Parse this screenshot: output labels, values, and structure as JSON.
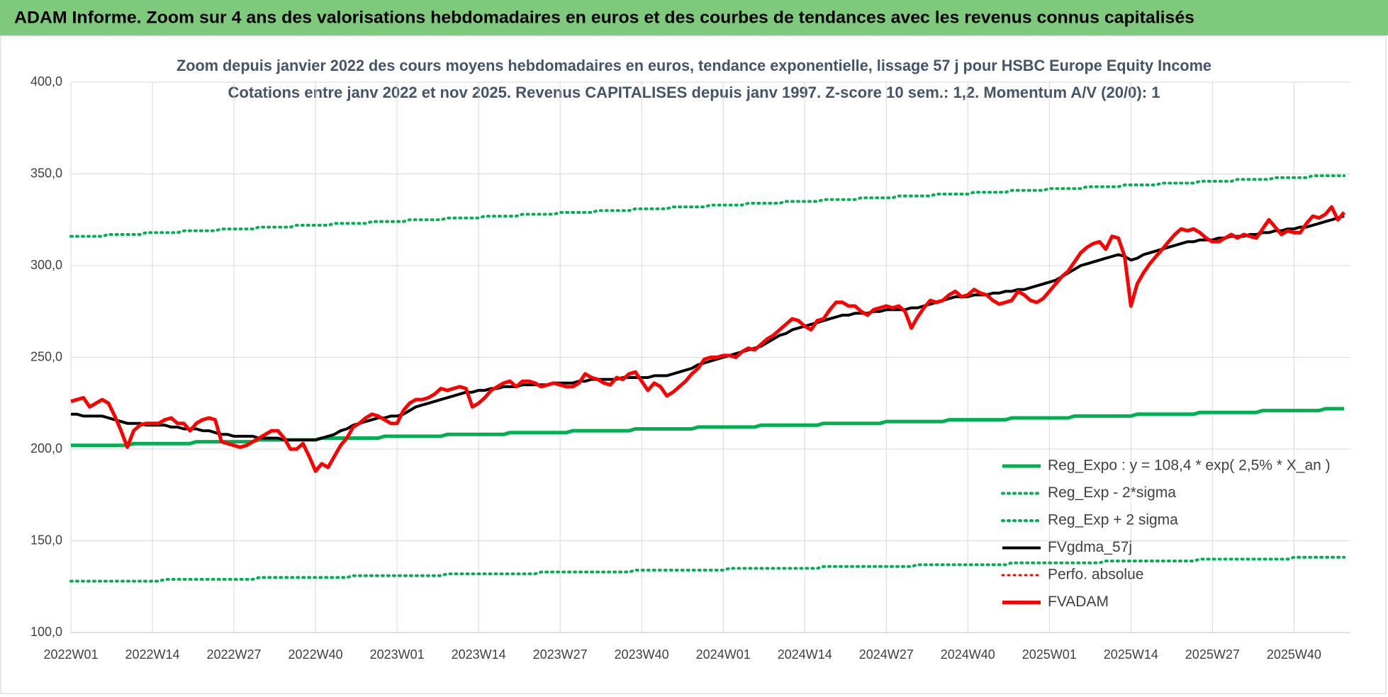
{
  "header": {
    "title": "ADAM Informe. Zoom sur 4 ans des valorisations hebdomadaires en euros et des courbes de tendances avec les revenus connus capitalisés"
  },
  "chart_data": {
    "type": "line",
    "title": "Zoom depuis janvier 2022 des cours moyens hebdomadaires en euros, tendance exponentielle, lissage 57 j pour HSBC Europe Equity Income",
    "subtitle": "Cotations entre janv 2022 et nov 2025. Revenus CAPITALISES depuis janv 1997. Z-score 10 sem.: 1,2. Momentum A/V (20/0): 1",
    "categories": [
      "2022W01",
      null,
      null,
      null,
      null,
      null,
      null,
      null,
      null,
      null,
      null,
      null,
      null,
      "2022W14",
      null,
      null,
      null,
      null,
      null,
      null,
      null,
      null,
      null,
      null,
      null,
      null,
      "2022W27",
      null,
      null,
      null,
      null,
      null,
      null,
      null,
      null,
      null,
      null,
      null,
      null,
      "2022W40",
      null,
      null,
      null,
      null,
      null,
      null,
      null,
      null,
      null,
      null,
      null,
      null,
      "2023W01",
      null,
      null,
      null,
      null,
      null,
      null,
      null,
      null,
      null,
      null,
      null,
      null,
      "2023W14",
      null,
      null,
      null,
      null,
      null,
      null,
      null,
      null,
      null,
      null,
      null,
      null,
      "2023W27",
      null,
      null,
      null,
      null,
      null,
      null,
      null,
      null,
      null,
      null,
      null,
      null,
      "2023W40",
      null,
      null,
      null,
      null,
      null,
      null,
      null,
      null,
      null,
      null,
      null,
      null,
      "2024W01",
      null,
      null,
      null,
      null,
      null,
      null,
      null,
      null,
      null,
      null,
      null,
      null,
      "2024W14",
      null,
      null,
      null,
      null,
      null,
      null,
      null,
      null,
      null,
      null,
      null,
      null,
      "2024W27",
      null,
      null,
      null,
      null,
      null,
      null,
      null,
      null,
      null,
      null,
      null,
      null,
      "2024W40",
      null,
      null,
      null,
      null,
      null,
      null,
      null,
      null,
      null,
      null,
      null,
      null,
      "2025W01",
      null,
      null,
      null,
      null,
      null,
      null,
      null,
      null,
      null,
      null,
      null,
      null,
      "2025W14",
      null,
      null,
      null,
      null,
      null,
      null,
      null,
      null,
      null,
      null,
      null,
      null,
      "2025W27",
      null,
      null,
      null,
      null,
      null,
      null,
      null,
      null,
      null,
      null,
      null,
      null,
      "2025W40",
      null,
      null,
      null,
      null,
      null,
      null,
      null,
      null
    ],
    "series": [
      {
        "name": "Reg_Expo : y = 108,4 * exp( 2,5% *  X_an )",
        "color": "#00b050",
        "style": "solid",
        "width": 5,
        "values": [
          202,
          202,
          202,
          202,
          202,
          202,
          202,
          202,
          202,
          202,
          203,
          203,
          203,
          203,
          203,
          203,
          203,
          203,
          203,
          203,
          204,
          204,
          204,
          204,
          204,
          204,
          204,
          204,
          204,
          204,
          205,
          205,
          205,
          205,
          205,
          205,
          205,
          205,
          205,
          205,
          206,
          206,
          206,
          206,
          206,
          206,
          206,
          206,
          206,
          206,
          207,
          207,
          207,
          207,
          207,
          207,
          207,
          207,
          207,
          207,
          208,
          208,
          208,
          208,
          208,
          208,
          208,
          208,
          208,
          208,
          209,
          209,
          209,
          209,
          209,
          209,
          209,
          209,
          209,
          209,
          210,
          210,
          210,
          210,
          210,
          210,
          210,
          210,
          210,
          210,
          211,
          211,
          211,
          211,
          211,
          211,
          211,
          211,
          211,
          211,
          212,
          212,
          212,
          212,
          212,
          212,
          212,
          212,
          212,
          212,
          213,
          213,
          213,
          213,
          213,
          213,
          213,
          213,
          213,
          213,
          214,
          214,
          214,
          214,
          214,
          214,
          214,
          214,
          214,
          214,
          215,
          215,
          215,
          215,
          215,
          215,
          215,
          215,
          215,
          215,
          216,
          216,
          216,
          216,
          216,
          216,
          216,
          216,
          216,
          216,
          217,
          217,
          217,
          217,
          217,
          217,
          217,
          217,
          217,
          217,
          218,
          218,
          218,
          218,
          218,
          218,
          218,
          218,
          218,
          218,
          219,
          219,
          219,
          219,
          219,
          219,
          219,
          219,
          219,
          219,
          220,
          220,
          220,
          220,
          220,
          220,
          220,
          220,
          220,
          220,
          221,
          221,
          221,
          221,
          221,
          221,
          221,
          221,
          221,
          221,
          222,
          222,
          222,
          222
        ]
      },
      {
        "name": "Reg_Exp - 2*sigma",
        "color": "#00b050",
        "style": "dotted",
        "width": 4,
        "values": [
          128,
          128,
          128,
          128,
          128,
          128,
          128,
          128,
          128,
          128,
          128,
          128,
          128,
          128,
          128,
          129,
          129,
          129,
          129,
          129,
          129,
          129,
          129,
          129,
          129,
          129,
          129,
          129,
          129,
          129,
          130,
          130,
          130,
          130,
          130,
          130,
          130,
          130,
          130,
          130,
          130,
          130,
          130,
          130,
          130,
          131,
          131,
          131,
          131,
          131,
          131,
          131,
          131,
          131,
          131,
          131,
          131,
          131,
          131,
          131,
          132,
          132,
          132,
          132,
          132,
          132,
          132,
          132,
          132,
          132,
          132,
          132,
          132,
          132,
          132,
          133,
          133,
          133,
          133,
          133,
          133,
          133,
          133,
          133,
          133,
          133,
          133,
          133,
          133,
          133,
          134,
          134,
          134,
          134,
          134,
          134,
          134,
          134,
          134,
          134,
          134,
          134,
          134,
          134,
          134,
          135,
          135,
          135,
          135,
          135,
          135,
          135,
          135,
          135,
          135,
          135,
          135,
          135,
          135,
          135,
          136,
          136,
          136,
          136,
          136,
          136,
          136,
          136,
          136,
          136,
          136,
          136,
          136,
          136,
          136,
          137,
          137,
          137,
          137,
          137,
          137,
          137,
          137,
          137,
          137,
          137,
          137,
          137,
          137,
          137,
          138,
          138,
          138,
          138,
          138,
          138,
          138,
          138,
          138,
          138,
          138,
          138,
          138,
          138,
          138,
          139,
          139,
          139,
          139,
          139,
          139,
          139,
          139,
          139,
          139,
          139,
          139,
          139,
          139,
          139,
          140,
          140,
          140,
          140,
          140,
          140,
          140,
          140,
          140,
          140,
          140,
          140,
          140,
          140,
          140,
          141,
          141,
          141,
          141,
          141,
          141,
          141,
          141,
          141
        ]
      },
      {
        "name": "Reg_Exp + 2 sigma",
        "color": "#00b050",
        "style": "dotted",
        "width": 4,
        "values": [
          316,
          316,
          316,
          316,
          316,
          316,
          317,
          317,
          317,
          317,
          317,
          317,
          318,
          318,
          318,
          318,
          318,
          318,
          319,
          319,
          319,
          319,
          319,
          319,
          320,
          320,
          320,
          320,
          320,
          320,
          321,
          321,
          321,
          321,
          321,
          321,
          322,
          322,
          322,
          322,
          322,
          322,
          323,
          323,
          323,
          323,
          323,
          323,
          324,
          324,
          324,
          324,
          324,
          324,
          325,
          325,
          325,
          325,
          325,
          325,
          326,
          326,
          326,
          326,
          326,
          326,
          327,
          327,
          327,
          327,
          327,
          327,
          328,
          328,
          328,
          328,
          328,
          328,
          329,
          329,
          329,
          329,
          329,
          329,
          330,
          330,
          330,
          330,
          330,
          330,
          331,
          331,
          331,
          331,
          331,
          331,
          332,
          332,
          332,
          332,
          332,
          332,
          333,
          333,
          333,
          333,
          333,
          333,
          334,
          334,
          334,
          334,
          334,
          334,
          335,
          335,
          335,
          335,
          335,
          335,
          336,
          336,
          336,
          336,
          336,
          336,
          337,
          337,
          337,
          337,
          337,
          337,
          338,
          338,
          338,
          338,
          338,
          338,
          339,
          339,
          339,
          339,
          339,
          339,
          340,
          340,
          340,
          340,
          340,
          340,
          341,
          341,
          341,
          341,
          341,
          341,
          342,
          342,
          342,
          342,
          342,
          342,
          343,
          343,
          343,
          343,
          343,
          343,
          344,
          344,
          344,
          344,
          344,
          344,
          345,
          345,
          345,
          345,
          345,
          345,
          346,
          346,
          346,
          346,
          346,
          346,
          347,
          347,
          347,
          347,
          347,
          347,
          348,
          348,
          348,
          348,
          348,
          348,
          349,
          349,
          349,
          349,
          349,
          349
        ]
      },
      {
        "name": "FVgdma_57j",
        "color": "#000000",
        "style": "solid",
        "width": 4,
        "values": [
          219,
          219,
          218,
          218,
          218,
          218,
          217,
          216,
          215,
          214,
          214,
          214,
          213,
          213,
          213,
          213,
          212,
          212,
          211,
          211,
          211,
          210,
          210,
          209,
          208,
          208,
          207,
          207,
          207,
          207,
          206,
          206,
          206,
          206,
          205,
          205,
          205,
          205,
          205,
          205,
          206,
          207,
          208,
          210,
          211,
          213,
          214,
          215,
          216,
          217,
          217,
          218,
          218,
          219,
          221,
          223,
          224,
          225,
          226,
          227,
          228,
          229,
          230,
          231,
          231,
          232,
          232,
          233,
          233,
          234,
          234,
          234,
          235,
          235,
          235,
          235,
          235,
          236,
          236,
          236,
          236,
          237,
          237,
          238,
          238,
          238,
          238,
          238,
          239,
          239,
          239,
          239,
          239,
          240,
          240,
          240,
          241,
          242,
          243,
          244,
          246,
          247,
          248,
          249,
          250,
          251,
          252,
          253,
          254,
          255,
          256,
          258,
          260,
          262,
          263,
          265,
          266,
          267,
          268,
          269,
          270,
          271,
          272,
          273,
          273,
          274,
          274,
          274,
          275,
          275,
          276,
          276,
          276,
          276,
          277,
          277,
          278,
          279,
          280,
          281,
          282,
          283,
          283,
          283,
          284,
          284,
          284,
          285,
          285,
          286,
          286,
          287,
          287,
          288,
          289,
          290,
          291,
          292,
          294,
          296,
          298,
          300,
          301,
          302,
          303,
          304,
          305,
          306,
          305,
          303,
          304,
          306,
          307,
          308,
          309,
          310,
          311,
          312,
          313,
          313,
          314,
          314,
          314,
          315,
          315,
          316,
          316,
          316,
          317,
          317,
          318,
          318,
          319,
          319,
          320,
          320,
          321,
          321,
          322,
          323,
          324,
          325,
          326,
          327
        ]
      },
      {
        "name": "Perfo. absolue",
        "color": "#ff0000",
        "style": "dotted",
        "width": 3
      },
      {
        "name": "FVADAM",
        "color": "#ff0000",
        "style": "solid",
        "width": 5,
        "values": [
          226,
          227,
          228,
          223,
          225,
          227,
          225,
          218,
          210,
          201,
          210,
          213,
          214,
          214,
          214,
          216,
          217,
          214,
          214,
          210,
          214,
          216,
          217,
          216,
          204,
          203,
          202,
          201,
          202,
          204,
          206,
          208,
          210,
          210,
          206,
          200,
          200,
          203,
          196,
          188,
          192,
          190,
          196,
          202,
          206,
          212,
          214,
          217,
          219,
          218,
          216,
          214,
          214,
          221,
          225,
          227,
          227,
          228,
          230,
          233,
          232,
          233,
          234,
          233,
          223,
          225,
          228,
          232,
          234,
          236,
          237,
          234,
          237,
          237,
          236,
          234,
          235,
          236,
          235,
          234,
          234,
          236,
          241,
          239,
          238,
          236,
          235,
          239,
          238,
          241,
          242,
          237,
          232,
          236,
          234,
          229,
          231,
          234,
          237,
          241,
          244,
          249,
          250,
          250,
          251,
          251,
          250,
          253,
          255,
          254,
          257,
          260,
          262,
          265,
          268,
          271,
          270,
          267,
          265,
          270,
          271,
          276,
          280,
          280,
          278,
          278,
          275,
          273,
          276,
          277,
          278,
          277,
          278,
          275,
          266,
          272,
          277,
          281,
          280,
          281,
          284,
          286,
          283,
          284,
          287,
          285,
          284,
          281,
          279,
          280,
          281,
          286,
          284,
          281,
          280,
          282,
          286,
          290,
          294,
          297,
          302,
          307,
          310,
          312,
          313,
          309,
          316,
          315,
          305,
          278,
          290,
          296,
          301,
          305,
          309,
          313,
          317,
          320,
          319,
          320,
          318,
          315,
          313,
          313,
          315,
          317,
          315,
          317,
          316,
          315,
          320,
          325,
          321,
          317,
          319,
          318,
          318,
          323,
          327,
          326,
          328,
          332,
          325,
          329
        ]
      }
    ],
    "ylim": [
      100,
      400
    ],
    "yticks": [
      {
        "value": 100,
        "label": "100,0"
      },
      {
        "value": 150,
        "label": "150,0"
      },
      {
        "value": 200,
        "label": "200,0"
      },
      {
        "value": 250,
        "label": "250,0"
      },
      {
        "value": 300,
        "label": "300,0"
      },
      {
        "value": 350,
        "label": "350,0"
      },
      {
        "value": 400,
        "label": "400,0"
      }
    ],
    "grid": true,
    "legend": "lower right"
  }
}
